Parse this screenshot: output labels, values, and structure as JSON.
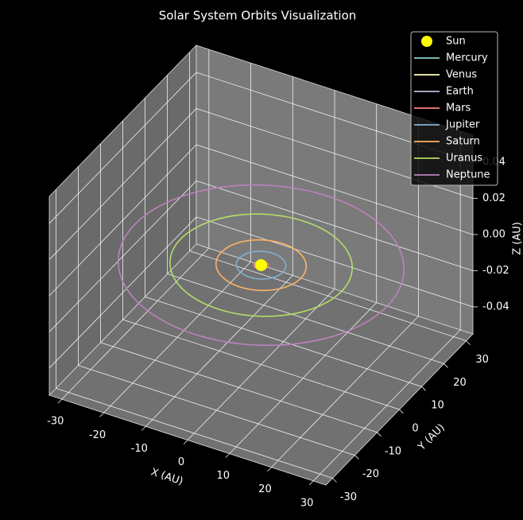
{
  "chart_data": {
    "type": "orbit3d",
    "title": "Solar System Orbits Visualization",
    "xlabel": "X (AU)",
    "ylabel": "Y (AU)",
    "zlabel": "Z (AU)",
    "xlim": [
      -33,
      33
    ],
    "ylim": [
      -33,
      33
    ],
    "zlim": [
      -0.055,
      0.055
    ],
    "xticks": [
      -30,
      -20,
      -10,
      0,
      10,
      20,
      30
    ],
    "yticks": [
      -30,
      -20,
      -10,
      0,
      10,
      20,
      30
    ],
    "zticks": [
      -0.04,
      -0.02,
      {
        "value": 0,
        "label": "0.00"
      },
      0.02,
      0.04
    ],
    "grid": true,
    "legend": "upper right",
    "sun": {
      "name": "Sun",
      "color": "#ffff00",
      "x": 0,
      "y": 0,
      "z": 0
    },
    "series": [
      {
        "name": "Mercury",
        "color": "#8dd3c7",
        "radius": 0.39
      },
      {
        "name": "Venus",
        "color": "#feffb3",
        "radius": 0.72
      },
      {
        "name": "Earth",
        "color": "#bfbbd9",
        "radius": 1.0
      },
      {
        "name": "Mars",
        "color": "#fa8174",
        "radius": 1.52
      },
      {
        "name": "Jupiter",
        "color": "#81b1d2",
        "radius": 5.2
      },
      {
        "name": "Saturn",
        "color": "#fdb462",
        "radius": 9.5
      },
      {
        "name": "Uranus",
        "color": "#b3de69",
        "radius": 19.2
      },
      {
        "name": "Neptune",
        "color": "#bc82bd",
        "radius": 30.1
      }
    ]
  }
}
